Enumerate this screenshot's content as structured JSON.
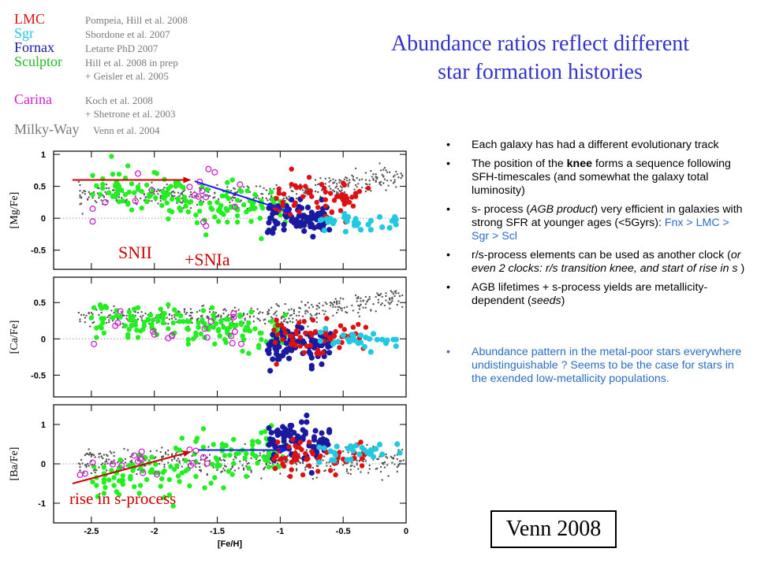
{
  "legend": [
    {
      "name": "LMC",
      "color": "#dd1111",
      "ref": "Pompeia, Hill et al. 2008",
      "sub": ""
    },
    {
      "name": "Sgr",
      "color": "#22c8e0",
      "ref": "Sbordone et al. 2007",
      "sub": ""
    },
    {
      "name": "Fornax",
      "color": "#1a1aa0",
      "ref": "Letarte PhD  2007",
      "sub": ""
    },
    {
      "name": "Sculptor",
      "color": "#22bb22",
      "ref": "Hill et al. 2008 in prep",
      "sub": "+ Geisler et al. 2005"
    },
    {
      "name": "Carina",
      "color": "#cc22cc",
      "ref": "Koch et al. 2008",
      "sub": "+ Shetrone et al. 2003"
    },
    {
      "name": "Milky-Way",
      "color": "#777777",
      "ref": "Venn et al. 2004",
      "sub": ""
    }
  ],
  "title_lines": [
    "Abundance  ratios reflect different",
    "star formation histories"
  ],
  "bullets": [
    {
      "text": "Each galaxy has had a different evolutionary track"
    },
    {
      "pre": "The position of the ",
      "bold": "knee",
      "post": "  forms a sequence following SFH-timescales  (and somewhat the galaxy total luminosity)"
    },
    {
      "pre": " s- process (",
      "it1": "AGB product",
      "mid": ") very  efficient in galaxies with strong SFR at younger ages (<5Gyrs): ",
      "blue": "Fnx > LMC > Sgr > Scl"
    },
    {
      "pre": "r/s-process elements can be used as another clock (",
      "it": "or even 2 clocks: r/s transition knee, and start of rise in s ",
      "post": ")"
    },
    {
      "pre": "AGB lifetimes + s-process yields are metallicity-dependent (",
      "it": "seeds",
      "post": ")"
    },
    {
      "text": "Abundance pattern in the metal-poor stars everywhere undistinguishable ? Seems to be the case for stars in the exended low-metallicity populations.",
      "blue": true
    }
  ],
  "citation": "Venn 2008",
  "annotations": {
    "snii": "SNII",
    "snia": "+SNIa",
    "rise": "rise in s-process"
  },
  "colors": {
    "lmc": "#dd1111",
    "sgr": "#22c8e0",
    "fnx": "#1a1aa0",
    "scl": "#22ee22",
    "car": "#cc22cc",
    "mw": "#555555",
    "title": "#3333cc",
    "arrow_red": "#cc0000",
    "arrow_blue": "#1a1aee",
    "annotation": "#cc0000"
  },
  "chart_data": {
    "type": "scatter",
    "xlabel": "[Fe/H]",
    "xlim": [
      -2.8,
      0
    ],
    "xticks": [
      "-2.5",
      "-2",
      "-1.5",
      "-1",
      "-0.5",
      "0"
    ],
    "panels": [
      {
        "ylabel": "[Mg/Fe]",
        "ylim": [
          -0.8,
          1.05
        ],
        "yticks": [
          "1",
          "0.5",
          "0",
          "-0.5"
        ]
      },
      {
        "ylabel": "[Ca/Fe]",
        "ylim": [
          -0.8,
          0.85
        ],
        "yticks": [
          "0.5",
          "0",
          "-0.5"
        ]
      },
      {
        "ylabel": "[Ba/Fe]",
        "ylim": [
          -1.5,
          1.5
        ],
        "yticks": [
          "1",
          "0",
          "-1"
        ]
      }
    ],
    "series": [
      {
        "key": "mw",
        "values": []
      },
      {
        "key": "scl",
        "values": []
      },
      {
        "key": "fnx",
        "values": []
      },
      {
        "key": "lmc",
        "values": []
      },
      {
        "key": "sgr",
        "values": []
      },
      {
        "key": "car",
        "values": []
      }
    ],
    "trend_arrows": [
      {
        "panel": 0,
        "color": "red",
        "from": [
          -2.65,
          0.6
        ],
        "to": [
          -1.72,
          0.6
        ]
      },
      {
        "panel": 0,
        "color": "blue",
        "from": [
          -1.68,
          0.58
        ],
        "to": [
          -0.92,
          0.1
        ]
      },
      {
        "panel": 2,
        "color": "red",
        "from": [
          -2.65,
          -0.5
        ],
        "to": [
          -1.72,
          0.3
        ]
      },
      {
        "panel": 2,
        "color": "blue",
        "from": [
          -1.65,
          0.35
        ],
        "to": [
          -0.95,
          0.35
        ]
      }
    ]
  }
}
